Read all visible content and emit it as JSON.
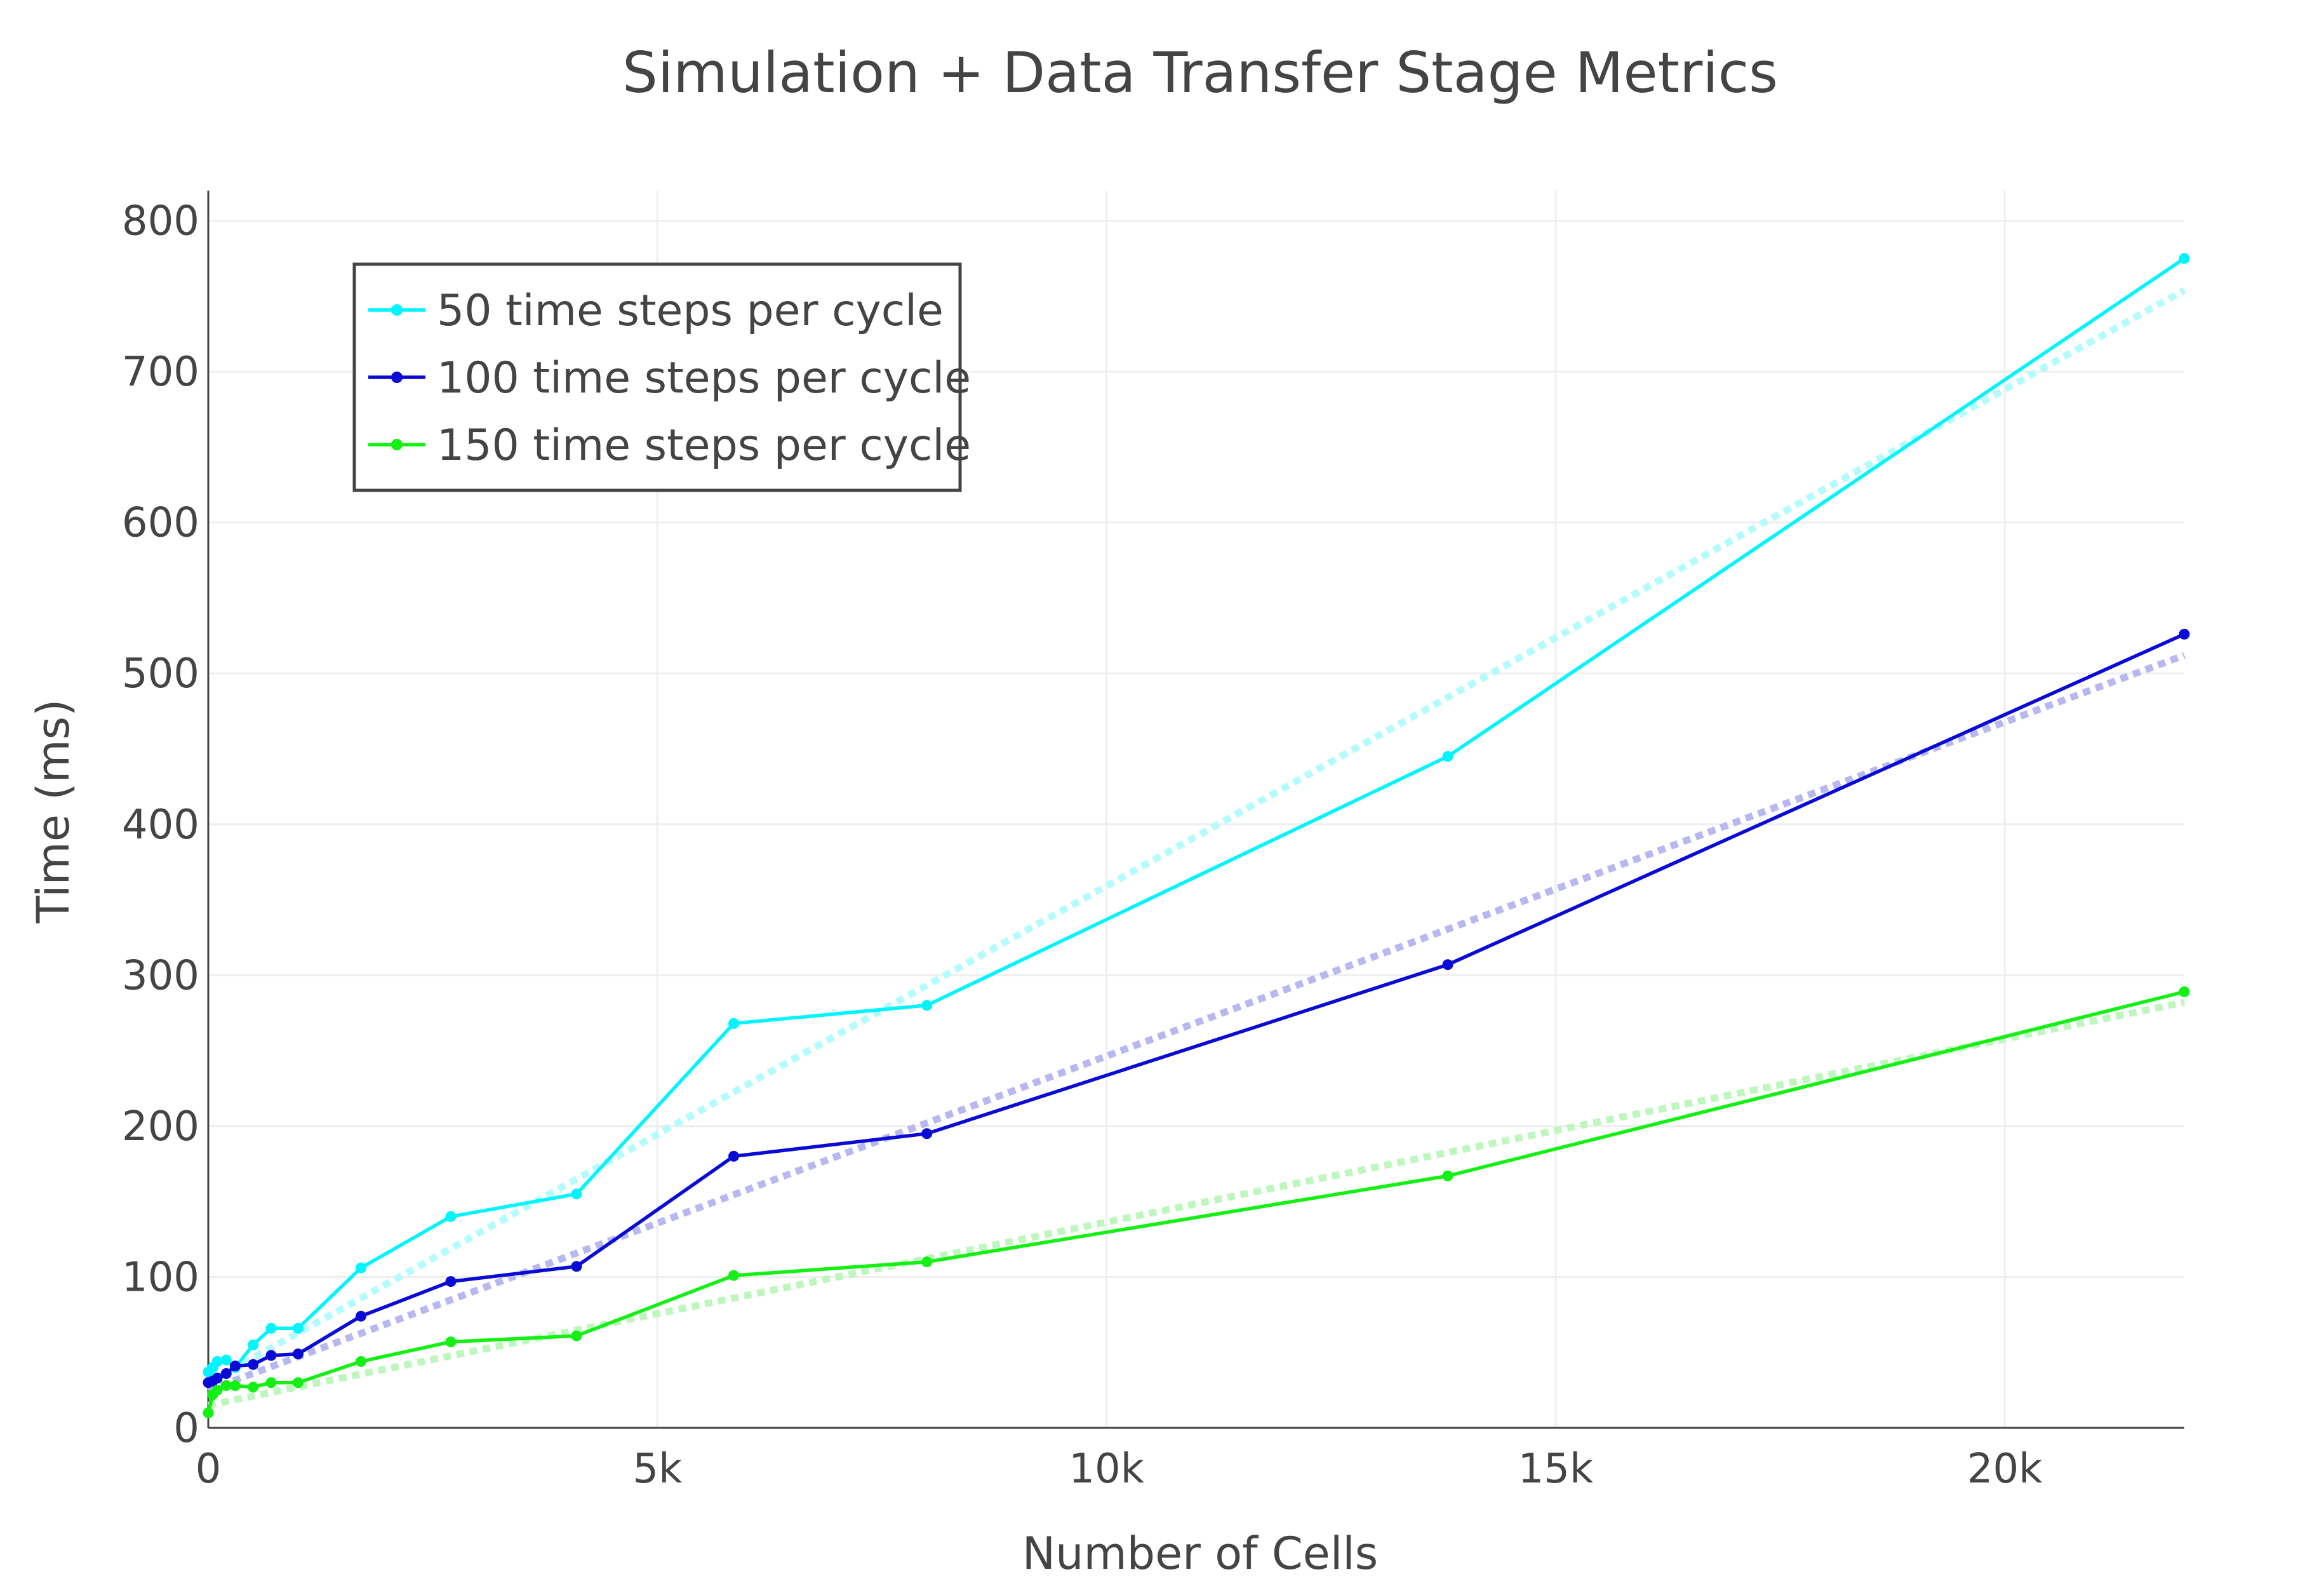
{
  "chart_data": {
    "type": "line",
    "title": "Simulation + Data Transfer Stage Metrics",
    "xlabel": "Number of Cells",
    "ylabel": "Time (ms)",
    "xlim": [
      0,
      22000
    ],
    "ylim": [
      0,
      820
    ],
    "x_ticks": [
      0,
      5000,
      10000,
      15000,
      20000
    ],
    "x_tick_labels": [
      "0",
      "5k",
      "10k",
      "15k",
      "20k"
    ],
    "y_ticks": [
      0,
      100,
      200,
      300,
      400,
      500,
      600,
      700,
      800
    ],
    "y_tick_labels": [
      "0",
      "100",
      "200",
      "300",
      "400",
      "500",
      "600",
      "700",
      "800"
    ],
    "grid": true,
    "legend_position": "top-left",
    "series": [
      {
        "name": "50 time steps per cycle",
        "color": "#00f5ff",
        "x": [
          0,
          50,
          100,
          200,
          300,
          500,
          700,
          1000,
          1700,
          2700,
          4100,
          5850,
          8000,
          13800,
          22000
        ],
        "y": [
          37,
          40,
          44,
          45,
          40,
          55,
          66,
          66,
          106,
          140,
          155,
          268,
          280,
          445,
          775
        ]
      },
      {
        "name": "100 time steps per cycle",
        "color": "#0a0ad6",
        "x": [
          0,
          50,
          100,
          200,
          300,
          500,
          700,
          1000,
          1700,
          2700,
          4100,
          5850,
          8000,
          13800,
          22000
        ],
        "y": [
          30,
          31,
          33,
          36,
          41,
          42,
          48,
          49,
          74,
          97,
          107,
          180,
          195,
          307,
          526
        ]
      },
      {
        "name": "150 time steps per cycle",
        "color": "#14f014",
        "x": [
          0,
          50,
          100,
          200,
          300,
          500,
          700,
          1000,
          1700,
          2700,
          4100,
          5850,
          8000,
          13800,
          22000
        ],
        "y": [
          10,
          22,
          25,
          28,
          28,
          27,
          30,
          30,
          44,
          57,
          61,
          101,
          110,
          167,
          289
        ]
      }
    ],
    "trendlines": [
      {
        "color": "#b4fcfc",
        "x": [
          0,
          22000
        ],
        "y": [
          30,
          754
        ]
      },
      {
        "color": "#b8b8f0",
        "x": [
          0,
          22000
        ],
        "y": [
          25,
          512
        ]
      },
      {
        "color": "#bdf7bd",
        "x": [
          0,
          22000
        ],
        "y": [
          15,
          282
        ]
      }
    ]
  }
}
